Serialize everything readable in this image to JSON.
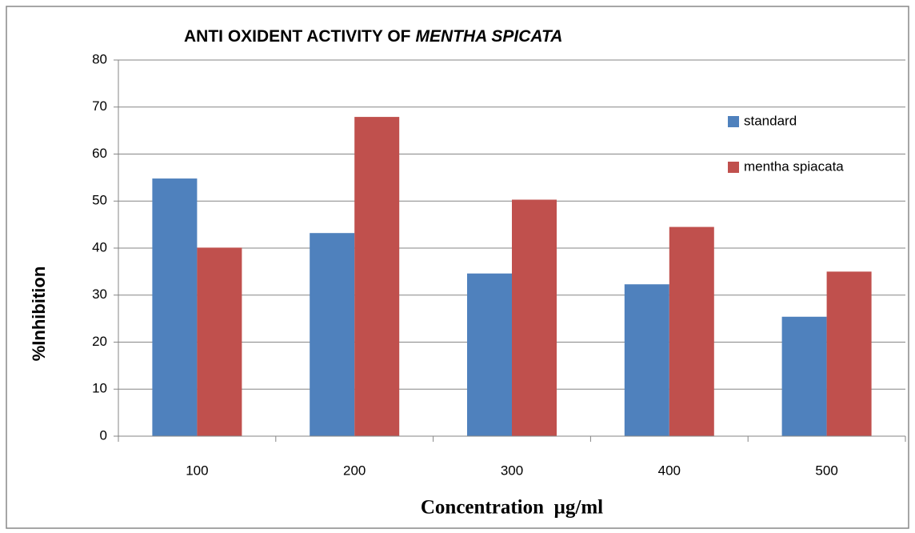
{
  "chart_data": {
    "type": "bar",
    "title": [
      "ANTI OXIDENT ACTIVITY OF",
      "MENTHA SPICATA"
    ],
    "x_label": "Concentration  µg/ml",
    "y_label": "%Inhibition",
    "categories": [
      "100",
      "200",
      "300",
      "400",
      "500"
    ],
    "series": [
      {
        "name": "standard",
        "color": "#4f81bd",
        "values": [
          54.8,
          43.2,
          34.6,
          32.3,
          25.4
        ]
      },
      {
        "name": "mentha spiacata",
        "color": "#c0504d",
        "values": [
          40.1,
          67.9,
          50.3,
          44.5,
          35.0
        ]
      }
    ],
    "ylim": [
      0,
      80
    ],
    "yticks": [
      0,
      10,
      20,
      30,
      40,
      50,
      60,
      70,
      80
    ],
    "grid": true,
    "legend": "right"
  }
}
